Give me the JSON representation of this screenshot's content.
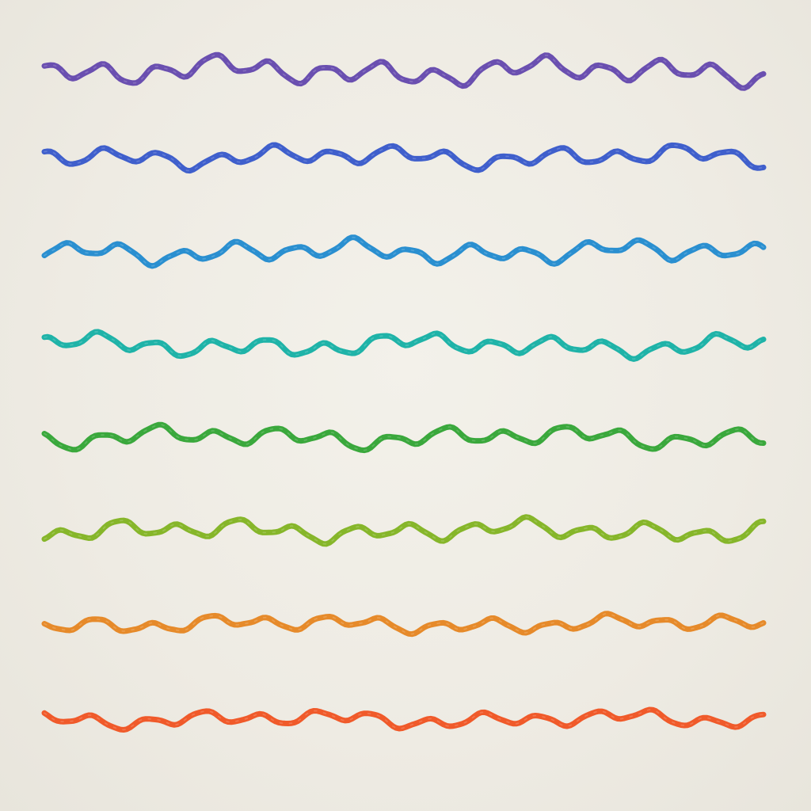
{
  "artwork": {
    "background_color": "#efece4",
    "stroke_style": "hand-drawn marker",
    "lines": [
      {
        "color": "#6a4fb0",
        "amplitude": 1.25,
        "seed": 11
      },
      {
        "color": "#3f5fcc",
        "amplitude": 1.0,
        "seed": 23
      },
      {
        "color": "#2a8fd0",
        "amplitude": 1.05,
        "seed": 37
      },
      {
        "color": "#1fb3a8",
        "amplitude": 1.0,
        "seed": 41
      },
      {
        "color": "#3aa83c",
        "amplitude": 1.0,
        "seed": 53
      },
      {
        "color": "#86b62a",
        "amplitude": 1.0,
        "seed": 67
      },
      {
        "color": "#e68a2a",
        "amplitude": 0.8,
        "seed": 71
      },
      {
        "color": "#f05a2a",
        "amplitude": 0.8,
        "seed": 89
      }
    ]
  }
}
